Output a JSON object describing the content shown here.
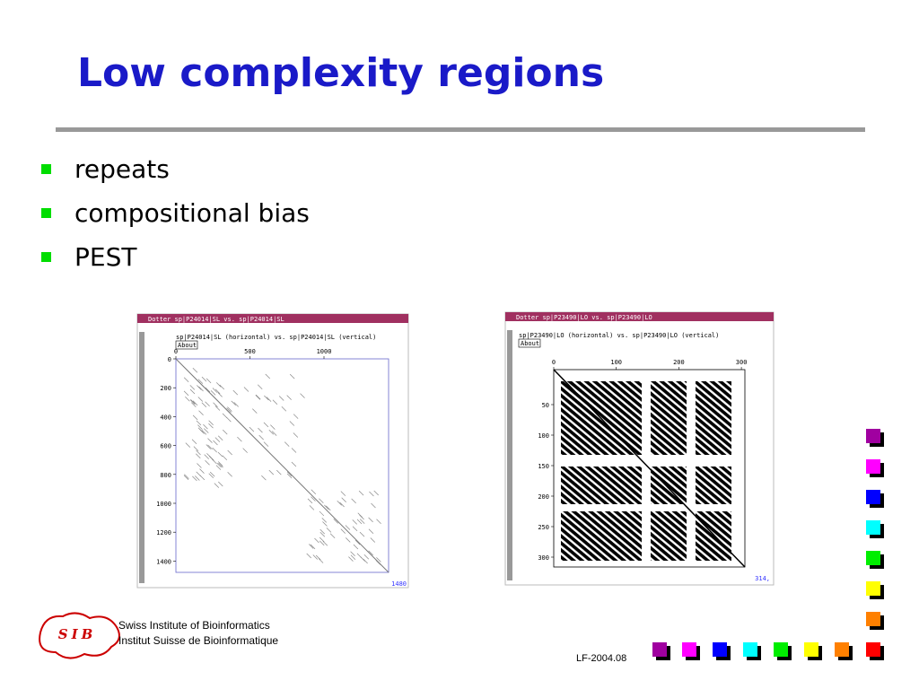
{
  "title": "Low complexity regions",
  "bullets": [
    "repeats",
    "compositional bias",
    "PEST"
  ],
  "plots": [
    {
      "window_title": "Dotter sp|P24014|SL vs. sp|P24014|SL",
      "subtitle": "sp|P24014|SL (horizontal) vs. sp|P24014|SL (vertical)",
      "button": "About",
      "xticks": [
        0,
        500,
        1000
      ],
      "yticks": [
        0,
        200,
        400,
        600,
        800,
        1000,
        1200,
        1400
      ],
      "corner": "1480"
    },
    {
      "window_title": "Dotter sp|P23490|LO vs. sp|P23490|LO",
      "subtitle": "sp|P23490|LO (horizontal) vs. sp|P23490|LO (vertical)",
      "button": "About",
      "xticks": [
        0,
        100,
        200,
        300
      ],
      "yticks": [
        50,
        100,
        150,
        200,
        250,
        300
      ],
      "corner": "314,"
    }
  ],
  "footer": {
    "logo": "SIB",
    "line1": "Swiss Institute of Bioinformatics",
    "line2": "Institut Suisse de Bioinformatique",
    "code": "LF-2004.08"
  }
}
